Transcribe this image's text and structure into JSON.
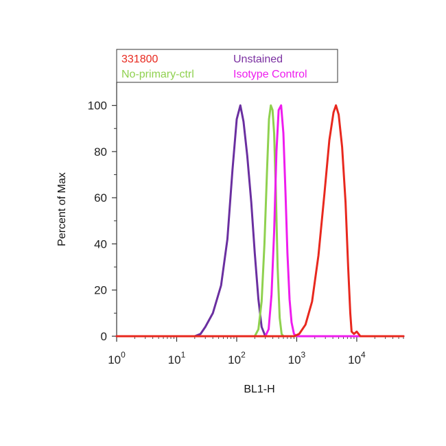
{
  "chart_data": {
    "type": "line",
    "title": "",
    "xlabel": "BL1-H",
    "ylabel": "Percent of Max",
    "x_scale": "log",
    "xlim": [
      1,
      60000
    ],
    "ylim": [
      0,
      110
    ],
    "x_ticks": [
      {
        "base": "10",
        "exp": "0",
        "value": 1
      },
      {
        "base": "10",
        "exp": "1",
        "value": 10
      },
      {
        "base": "10",
        "exp": "2",
        "value": 100
      },
      {
        "base": "10",
        "exp": "3",
        "value": 1000
      },
      {
        "base": "10",
        "exp": "4",
        "value": 10000
      }
    ],
    "y_ticks": [
      "0",
      "20",
      "40",
      "60",
      "80",
      "100"
    ],
    "legend": {
      "placement": "top",
      "entries": [
        {
          "label": "331800",
          "color": "#e8281e"
        },
        {
          "label": "Unstained",
          "color": "#7a2fa0"
        },
        {
          "label": "No-primary-ctrl",
          "color": "#8fd14f"
        },
        {
          "label": "Isotype Control",
          "color": "#ee1cee"
        }
      ]
    },
    "series": [
      {
        "name": "Unstained",
        "color": "#6a2fa0",
        "x": [
          1,
          20,
          25,
          30,
          40,
          55,
          70,
          85,
          100,
          115,
          130,
          150,
          175,
          200,
          230,
          260,
          300,
          400,
          1000,
          60000
        ],
        "y": [
          0,
          0,
          1,
          4,
          10,
          22,
          42,
          72,
          94,
          100,
          93,
          78,
          58,
          36,
          16,
          4,
          0,
          0,
          0,
          0
        ]
      },
      {
        "name": "No-primary-ctrl",
        "color": "#8fd14f",
        "x": [
          1,
          200,
          230,
          260,
          290,
          320,
          345,
          370,
          395,
          420,
          450,
          480,
          520,
          560,
          600,
          700,
          60000
        ],
        "y": [
          0,
          0,
          3,
          15,
          40,
          72,
          94,
          100,
          98,
          88,
          62,
          30,
          8,
          1,
          0,
          0,
          0
        ]
      },
      {
        "name": "Isotype Control",
        "color": "#ee1cee",
        "x": [
          1,
          300,
          340,
          380,
          420,
          460,
          500,
          550,
          600,
          650,
          700,
          760,
          820,
          900,
          1000,
          60000
        ],
        "y": [
          0,
          0,
          3,
          18,
          45,
          80,
          98,
          100,
          88,
          62,
          36,
          16,
          6,
          1,
          0,
          0
        ]
      },
      {
        "name": "331800",
        "color": "#e8281e",
        "x": [
          1,
          900,
          1100,
          1400,
          1800,
          2300,
          2900,
          3500,
          4100,
          4500,
          5000,
          5700,
          6500,
          7200,
          7800,
          8200,
          9000,
          10000,
          11500,
          60000
        ],
        "y": [
          0,
          0,
          1,
          5,
          15,
          35,
          62,
          85,
          97,
          100,
          96,
          82,
          58,
          30,
          10,
          2,
          1,
          2,
          0,
          0
        ]
      }
    ]
  }
}
